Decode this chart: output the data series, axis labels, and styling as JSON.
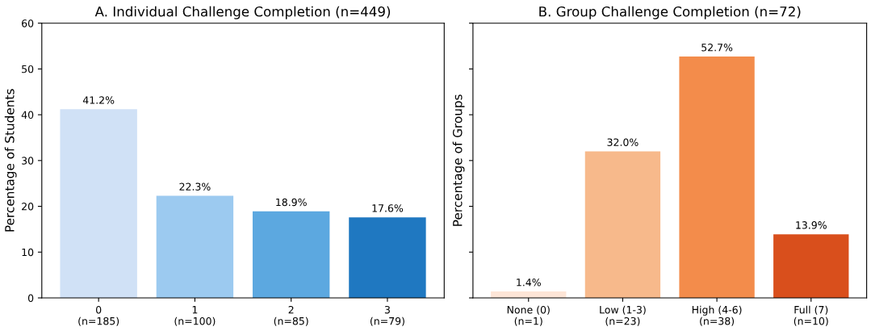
{
  "chart_data": [
    {
      "type": "bar",
      "title": "A. Individual Challenge Completion (n=449)",
      "ylabel": "Percentage of Students",
      "categories": [
        "0\n(n=185)",
        "1\n(n=100)",
        "2\n(n=85)",
        "3\n(n=79)"
      ],
      "values": [
        41.2,
        22.3,
        18.9,
        17.6
      ],
      "colors": [
        "#d0e1f6",
        "#9ccaf0",
        "#5ca8e0",
        "#1f78c1"
      ],
      "value_labels": [
        "41.2%",
        "22.3%",
        "18.9%",
        "17.6%"
      ],
      "ylim": [
        0,
        60
      ],
      "yticks": [
        0,
        10,
        20,
        30,
        40,
        50,
        60
      ],
      "grid": false
    },
    {
      "type": "bar",
      "title": "B. Group Challenge Completion (n=72)",
      "ylabel": "Percentage of Groups",
      "categories": [
        "None (0)\n(n=1)",
        "Low (1-3)\n(n=23)",
        "High (4-6)\n(n=38)",
        "Full (7)\n(n=10)"
      ],
      "values": [
        1.4,
        32.0,
        52.7,
        13.9
      ],
      "colors": [
        "#fde5d7",
        "#f7b98b",
        "#f38c4b",
        "#d94f1c"
      ],
      "value_labels": [
        "1.4%",
        "32.0%",
        "52.7%",
        "13.9%"
      ],
      "ylim": [
        0,
        60
      ],
      "yticks": [
        0,
        10,
        20,
        30,
        40,
        50,
        60
      ],
      "tick_labels": "x",
      "grid": false
    }
  ]
}
